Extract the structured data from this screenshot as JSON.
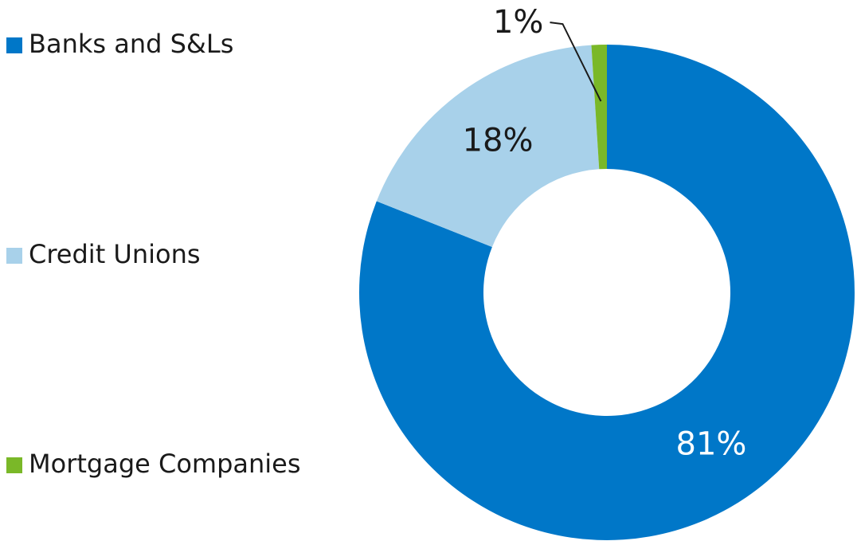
{
  "chart_data": {
    "type": "donut",
    "categories": [
      "Banks and S&Ls",
      "Credit Unions",
      "Mortgage Companies"
    ],
    "values": [
      81,
      18,
      1
    ],
    "value_labels": [
      "81%",
      "18%",
      "1%"
    ],
    "colors": [
      "#0077c8",
      "#a8d1ea",
      "#7ab828"
    ],
    "legend": "left"
  }
}
